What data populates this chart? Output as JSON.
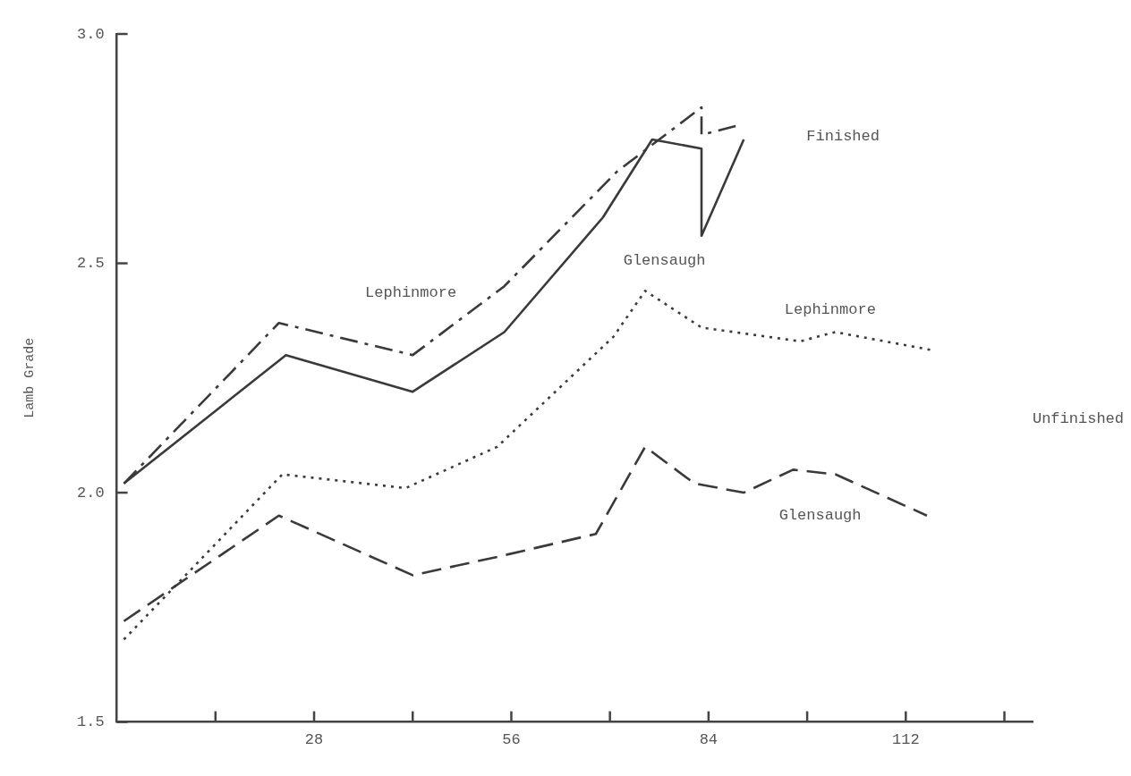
{
  "chart_data": {
    "type": "line",
    "ylabel": "Lamb Grade",
    "xlim": [
      0,
      130
    ],
    "ylim": [
      1.5,
      3.0
    ],
    "xticks": [
      {
        "value": 14,
        "label": null
      },
      28,
      {
        "value": 42,
        "label": null
      },
      56,
      {
        "value": 70,
        "label": null
      },
      84,
      {
        "value": 98,
        "label": null
      },
      112,
      {
        "value": 126,
        "label": null
      }
    ],
    "yticks": [
      {
        "value": 1.5,
        "label": "1.5"
      },
      {
        "value": 2.0,
        "label": "2.0"
      },
      {
        "value": 2.5,
        "label": "2.5"
      },
      {
        "value": 3.0,
        "label": "3.0"
      }
    ],
    "grid": false,
    "legend": false,
    "marker": "none",
    "series": [
      {
        "color": "#3a3a3a",
        "line_style": "dashdot",
        "x": [
          1,
          23,
          42,
          55,
          71,
          83,
          83,
          88
        ],
        "values": [
          2.02,
          2.37,
          2.3,
          2.45,
          2.7,
          2.84,
          2.78,
          2.8
        ]
      },
      {
        "color": "#3a3a3a",
        "line_style": "solid",
        "x": [
          1,
          24,
          42,
          55,
          69,
          76,
          83,
          83,
          89
        ],
        "values": [
          2.02,
          2.3,
          2.22,
          2.35,
          2.6,
          2.77,
          2.75,
          2.56,
          2.77
        ]
      },
      {
        "color": "#3a3a3a",
        "line_style": "dotted",
        "x": [
          1,
          23.5,
          41,
          54,
          70.5,
          75,
          83,
          97,
          102,
          116
        ],
        "values": [
          1.68,
          2.04,
          2.01,
          2.1,
          2.34,
          2.44,
          2.36,
          2.33,
          2.35,
          2.31
        ]
      },
      {
        "color": "#3a3a3a",
        "line_style": "dashed",
        "x": [
          1,
          23,
          42,
          54,
          68,
          75,
          82,
          89,
          96,
          102,
          115
        ],
        "values": [
          1.72,
          1.95,
          1.82,
          1.86,
          1.91,
          2.1,
          2.02,
          2.0,
          2.05,
          2.04,
          1.95
        ]
      }
    ],
    "annotations": [
      "Lephinmore",
      "Glensaugh",
      "Finished",
      "Lephinmore",
      "Glensaugh",
      "Unfinished"
    ]
  }
}
